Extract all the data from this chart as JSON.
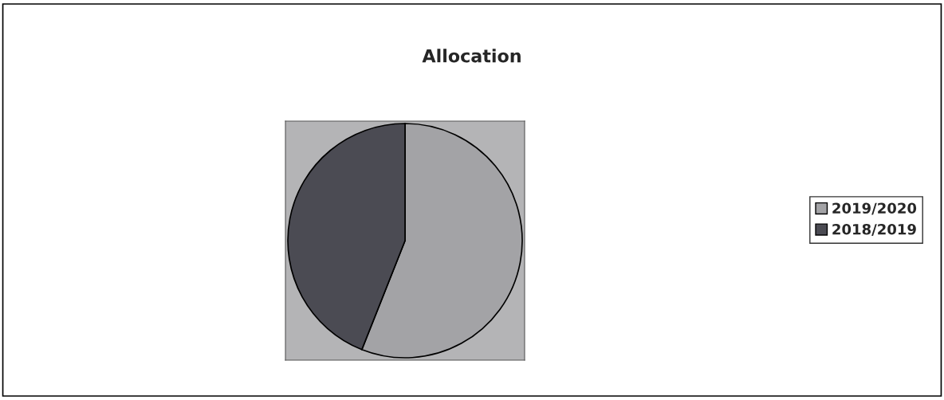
{
  "chart_data": {
    "type": "pie",
    "title": "Allocation",
    "categories": [
      "2019/2020",
      "2018/2019"
    ],
    "values": [
      56,
      44
    ],
    "colors": [
      "#a3a3a6",
      "#4b4b53"
    ],
    "legend": "right"
  }
}
